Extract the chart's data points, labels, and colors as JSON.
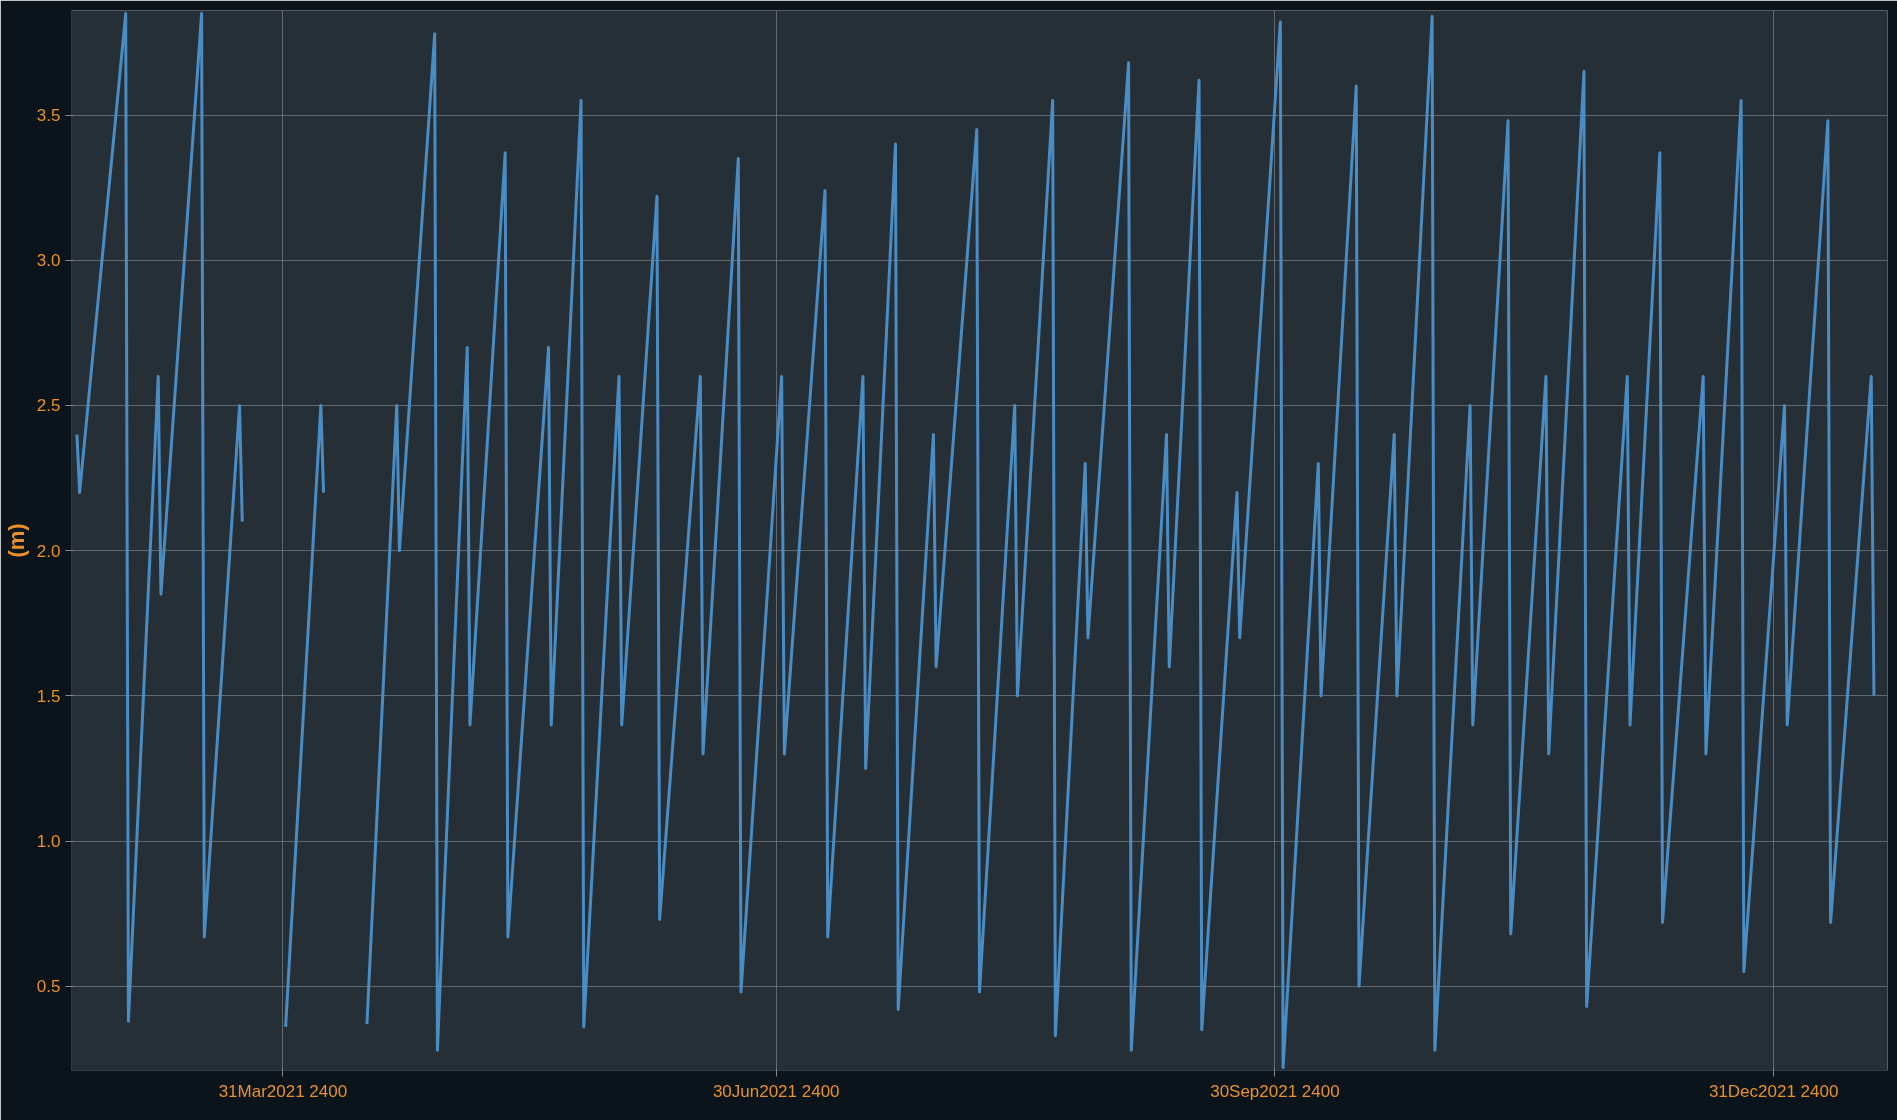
{
  "chart_data": {
    "type": "line",
    "ylabel": "(m)",
    "xlim": [
      "2021-02-20",
      "2022-01-21"
    ],
    "xticks": [
      {
        "value": "2021-03-31",
        "label": "31Mar2021 2400"
      },
      {
        "value": "2021-06-30",
        "label": "30Jun2021 2400"
      },
      {
        "value": "2021-09-30",
        "label": "30Sep2021 2400"
      },
      {
        "value": "2021-12-31",
        "label": "31Dec2021 2400"
      }
    ],
    "ylim": [
      0.21,
      3.86
    ],
    "yticks": [
      {
        "value": 0.5,
        "label": "0.5"
      },
      {
        "value": 1.0,
        "label": "1.0"
      },
      {
        "value": 1.5,
        "label": "1.5"
      },
      {
        "value": 2.0,
        "label": "2.0"
      },
      {
        "value": 2.5,
        "label": "2.5"
      },
      {
        "value": 3.0,
        "label": "3.0"
      },
      {
        "value": 3.5,
        "label": "3.5"
      }
    ],
    "grid": true,
    "line_style": "solid",
    "series": [
      {
        "color": "#4a8cc4",
        "x": [
          "2021-02-21T00:00",
          "2021-02-21T12:00",
          "2021-03-02T00:00",
          "2021-03-02T12:00",
          "2021-03-08T00:00",
          "2021-03-08T12:00",
          "2021-03-16T00:00",
          "2021-03-16T12:00",
          "2021-03-23T00:00",
          "2021-03-23T12:00",
          "2021-03-31T00:00",
          "2021-03-31T12:00",
          "2021-04-07T00:00",
          "2021-04-07T12:00",
          "2021-04-15T00:00",
          "2021-04-15T12:00",
          "2021-04-21T00:00",
          "2021-04-21T12:00",
          "2021-04-28T00:00",
          "2021-04-28T12:00",
          "2021-05-04T00:00",
          "2021-05-04T12:00",
          "2021-05-11T00:00",
          "2021-05-11T12:00",
          "2021-05-19T00:00",
          "2021-05-19T12:00",
          "2021-05-25T00:00",
          "2021-05-25T12:00",
          "2021-06-01T00:00",
          "2021-06-01T12:00",
          "2021-06-08T00:00",
          "2021-06-08T12:00",
          "2021-06-16T00:00",
          "2021-06-16T12:00",
          "2021-06-23T00:00",
          "2021-06-23T12:00",
          "2021-07-01T00:00",
          "2021-07-01T12:00",
          "2021-07-09T00:00",
          "2021-07-09T12:00",
          "2021-07-16T00:00",
          "2021-07-16T12:00",
          "2021-07-22T00:00",
          "2021-07-22T12:00",
          "2021-07-29T00:00",
          "2021-07-29T12:00",
          "2021-08-06T00:00",
          "2021-08-06T12:00",
          "2021-08-13T00:00",
          "2021-08-13T12:00",
          "2021-08-20T00:00",
          "2021-08-20T12:00",
          "2021-08-26T00:00",
          "2021-08-26T12:00",
          "2021-09-03T00:00",
          "2021-09-03T12:00",
          "2021-09-10T00:00",
          "2021-09-10T12:00",
          "2021-09-16T00:00",
          "2021-09-16T12:00",
          "2021-09-23T00:00",
          "2021-09-23T12:00",
          "2021-10-01T00:00",
          "2021-10-01T12:00",
          "2021-10-08T00:00",
          "2021-10-08T12:00",
          "2021-10-15T00:00",
          "2021-10-15T12:00",
          "2021-10-22T00:00",
          "2021-10-22T12:00",
          "2021-10-29T00:00",
          "2021-10-29T12:00",
          "2021-11-05T00:00",
          "2021-11-05T12:00",
          "2021-11-12T00:00",
          "2021-11-12T12:00",
          "2021-11-19T00:00",
          "2021-11-19T12:00",
          "2021-11-26T00:00",
          "2021-11-26T12:00",
          "2021-12-04T00:00",
          "2021-12-04T12:00",
          "2021-12-10T00:00",
          "2021-12-10T12:00",
          "2021-12-18T00:00",
          "2021-12-18T12:00",
          "2021-12-25T00:00",
          "2021-12-25T12:00",
          "2022-01-02T00:00",
          "2022-01-02T12:00",
          "2022-01-10T00:00",
          "2022-01-10T12:00",
          "2022-01-18T00:00",
          "2022-01-18T12:00"
        ],
        "values": [
          2.4,
          2.2,
          3.85,
          0.38,
          2.6,
          1.85,
          3.85,
          0.67,
          2.5,
          2.1,
          null,
          0.36,
          2.5,
          2.2,
          null,
          0.37,
          2.5,
          2.0,
          3.78,
          0.28,
          2.7,
          1.4,
          3.37,
          0.67,
          2.7,
          1.4,
          3.55,
          0.36,
          2.6,
          1.4,
          3.22,
          0.73,
          2.6,
          1.3,
          3.35,
          0.48,
          2.6,
          1.3,
          3.24,
          0.67,
          2.6,
          1.25,
          3.4,
          0.42,
          2.4,
          1.6,
          3.45,
          0.48,
          2.5,
          1.5,
          3.55,
          0.33,
          2.3,
          1.7,
          3.68,
          0.28,
          2.4,
          1.6,
          3.62,
          0.35,
          2.2,
          1.7,
          3.82,
          0.22,
          2.3,
          1.5,
          3.6,
          0.5,
          2.4,
          1.5,
          3.84,
          0.28,
          2.5,
          1.4,
          3.48,
          0.68,
          2.6,
          1.3,
          3.65,
          0.43,
          2.6,
          1.4,
          3.37,
          0.72,
          2.6,
          1.3,
          3.55,
          0.55,
          2.5,
          1.4,
          3.48,
          0.72,
          2.6,
          1.5
        ]
      }
    ]
  }
}
